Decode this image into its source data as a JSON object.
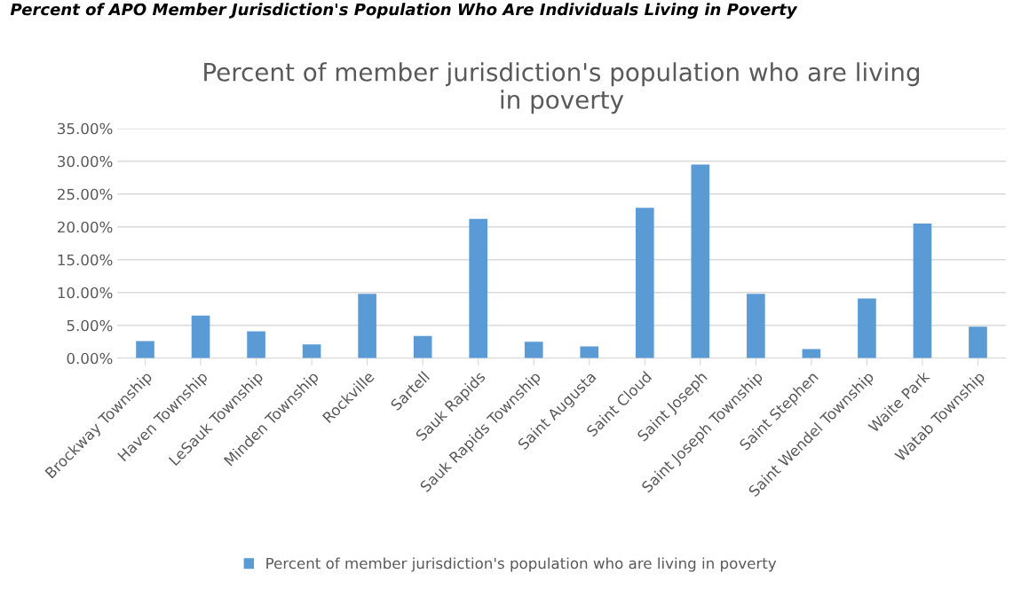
{
  "chart_data": {
    "type": "bar",
    "title": "Percent of member jurisdiction's population who are living\nin poverty",
    "annotations": [
      "Percent of APO Member Jurisdiction's Population Who Are Individuals Living in Poverty"
    ],
    "categories": [
      "Brockway Township",
      "Haven Township",
      "LeSauk Township",
      "Minden Township",
      "Rockville",
      "Sartell",
      "Sauk Rapids",
      "Sauk Rapids Township",
      "Saint Augusta",
      "Saint Cloud",
      "Saint Joseph",
      "Saint Joseph Township",
      "Saint Stephen",
      "Saint Wendel Township",
      "Waite Park",
      "Watab Township"
    ],
    "series": [
      {
        "name": "Percent of member jurisdiction's population who are living in poverty",
        "color": "#5b9bd5",
        "values": [
          2.6,
          6.5,
          4.1,
          2.1,
          9.8,
          3.4,
          21.2,
          2.5,
          1.8,
          22.9,
          29.5,
          9.8,
          1.4,
          9.1,
          20.5,
          4.8
        ]
      }
    ],
    "ylim": [
      0,
      35
    ],
    "yticks": [
      {
        "value": 0,
        "label": "0.00%"
      },
      {
        "value": 5,
        "label": "5.00%"
      },
      {
        "value": 10,
        "label": "10.00%"
      },
      {
        "value": 15,
        "label": "15.00%"
      },
      {
        "value": 20,
        "label": "20.00%"
      },
      {
        "value": 25,
        "label": "25.00%"
      },
      {
        "value": 30,
        "label": "30.00%"
      },
      {
        "value": 35,
        "label": "35.00%"
      }
    ],
    "grid": "y",
    "legend": "bottom"
  }
}
